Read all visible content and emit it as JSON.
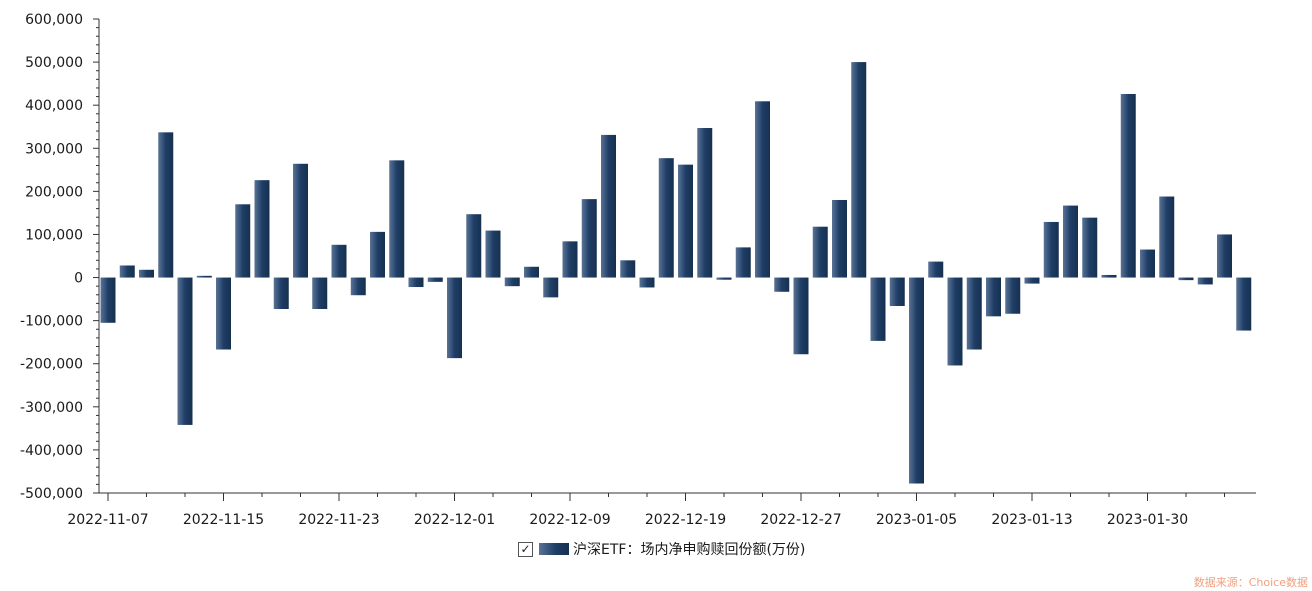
{
  "chart_data": {
    "type": "bar",
    "title": "",
    "xlabel": "",
    "ylabel": "",
    "ylim": [
      -500000,
      600000
    ],
    "yticks": [
      "600,000",
      "500,000",
      "400,000",
      "300,000",
      "200,000",
      "100,000",
      "0",
      "-100,000",
      "-200,000",
      "-300,000",
      "-400,000",
      "-500,000"
    ],
    "x_tick_labels": [
      "2022-11-07",
      "2022-11-15",
      "2022-11-23",
      "2022-12-01",
      "2022-12-09",
      "2022-12-19",
      "2022-12-27",
      "2023-01-05",
      "2023-01-13",
      "2023-01-30"
    ],
    "series": [
      {
        "name": "沪深ETF：场内净申购赎回份额(万份)",
        "color": "#1f3e66",
        "values": [
          -105000,
          28000,
          18000,
          337000,
          -342000,
          4000,
          -167000,
          170000,
          226000,
          -73000,
          264000,
          -73000,
          76000,
          -41000,
          106000,
          272000,
          -22000,
          -10000,
          -187000,
          147000,
          109000,
          -20000,
          25000,
          -46000,
          84000,
          182000,
          331000,
          40000,
          -23000,
          277000,
          262000,
          347000,
          -5000,
          70000,
          409000,
          -33000,
          -178000,
          118000,
          180000,
          500000,
          -147000,
          -66000,
          -478000,
          37000,
          -204000,
          -167000,
          -90000,
          -84000,
          -14000,
          129000,
          167000,
          139000,
          6000,
          426000,
          65000,
          188000,
          -6000,
          -16000,
          100000,
          -123000
        ]
      }
    ],
    "legend": {
      "position": "bottom-center",
      "checked": true
    },
    "grid": false
  },
  "source_note": "数据来源：Choice数据"
}
